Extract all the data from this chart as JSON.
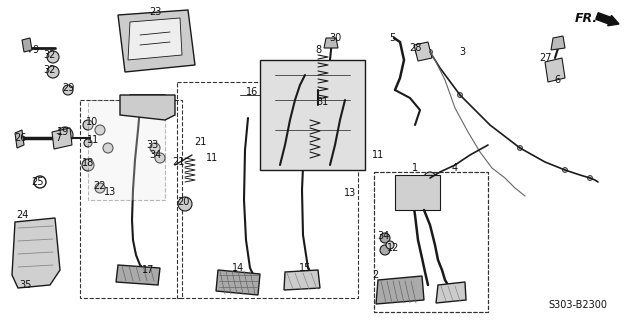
{
  "image_b64": "",
  "bg_color": "#ffffff",
  "figsize": [
    6.33,
    3.2
  ],
  "dpi": 100
}
